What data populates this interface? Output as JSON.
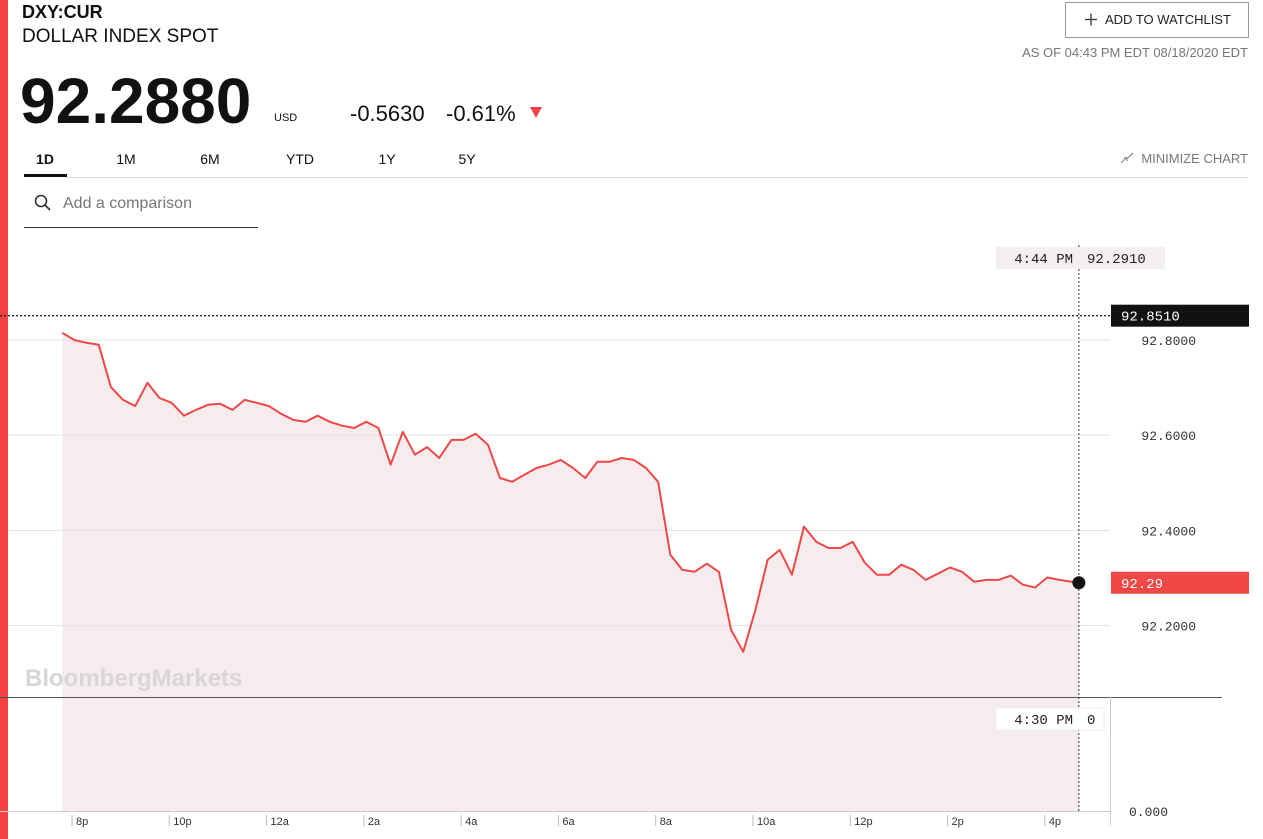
{
  "header": {
    "ticker": "DXY:CUR",
    "name": "DOLLAR INDEX SPOT",
    "price": "92.2880",
    "currency": "USD",
    "change": "-0.5630",
    "change_pct": "-0.61%",
    "watchlist_button": "ADD TO WATCHLIST",
    "as_of": "AS OF 04:43 PM EDT 08/18/2020 EDT",
    "tabs": [
      "1D",
      "1M",
      "6M",
      "YTD",
      "1Y",
      "5Y"
    ],
    "minimize": "MINIMIZE CHART",
    "search_placeholder": "Add a comparison"
  },
  "chart_data": {
    "type": "line",
    "watermark": "BloombergMarkets",
    "series": [
      {
        "name": "DXY:CUR",
        "color": "#f04747",
        "x": [
          19.8,
          20.05,
          20.3,
          20.55,
          20.8,
          21.05,
          21.3,
          21.55,
          21.8,
          22.05,
          22.3,
          22.55,
          22.8,
          23.05,
          23.3,
          23.55,
          23.8,
          24.05,
          24.3,
          24.55,
          24.8,
          25.05,
          25.3,
          25.55,
          25.8,
          26.05,
          26.3,
          26.55,
          26.8,
          27.05,
          27.3,
          27.55,
          27.8,
          28.05,
          28.3,
          28.55,
          28.8,
          29.05,
          29.3,
          29.55,
          29.8,
          30.05,
          30.3,
          30.55,
          30.8,
          31.05,
          31.3,
          31.55,
          31.8,
          32.05,
          32.3,
          32.55,
          32.8,
          33.05,
          33.3,
          33.55,
          33.8,
          34.05,
          34.3,
          34.55,
          34.8,
          35.05,
          35.3,
          35.55,
          35.8,
          36.05,
          36.3,
          36.55,
          36.8,
          37.05,
          37.3,
          37.55,
          37.8,
          38.05,
          38.3,
          38.55,
          38.8,
          39.05,
          39.3,
          39.55,
          39.8,
          40.05,
          40.3,
          40.55,
          40.7
        ],
        "values": [
          92.815,
          92.8,
          92.794,
          92.79,
          92.701,
          92.674,
          92.661,
          92.71,
          92.678,
          92.668,
          92.641,
          92.653,
          92.664,
          92.666,
          92.653,
          92.674,
          92.668,
          92.661,
          92.645,
          92.632,
          92.628,
          92.641,
          92.628,
          92.62,
          92.615,
          92.628,
          92.615,
          92.538,
          92.607,
          92.559,
          92.575,
          92.552,
          92.59,
          92.59,
          92.603,
          92.58,
          92.51,
          92.502,
          92.517,
          92.531,
          92.538,
          92.548,
          92.531,
          92.51,
          92.544,
          92.544,
          92.552,
          92.548,
          92.531,
          92.502,
          92.349,
          92.317,
          92.313,
          92.33,
          92.313,
          92.191,
          92.145,
          92.233,
          92.338,
          92.359,
          92.307,
          92.408,
          92.376,
          92.363,
          92.363,
          92.376,
          92.332,
          92.307,
          92.307,
          92.328,
          92.317,
          92.296,
          92.309,
          92.322,
          92.313,
          92.292,
          92.296,
          92.296,
          92.305,
          92.286,
          92.28,
          92.301,
          92.296,
          92.292,
          92.29
        ]
      }
    ],
    "xlim": [
      18.52,
      41.34
    ],
    "xticks": [
      {
        "value": 20,
        "label": "8p"
      },
      {
        "value": 22,
        "label": "10p"
      },
      {
        "value": 24,
        "label": "12a"
      },
      {
        "value": 26,
        "label": "2a"
      },
      {
        "value": 28,
        "label": "4a"
      },
      {
        "value": 30,
        "label": "6a"
      },
      {
        "value": 32,
        "label": "8a"
      },
      {
        "value": 34,
        "label": "10a"
      },
      {
        "value": 36,
        "label": "12p"
      },
      {
        "value": 38,
        "label": "2p"
      },
      {
        "value": 40,
        "label": "4p"
      }
    ],
    "ylim": [
      92.05,
      93.01
    ],
    "yticks": [
      {
        "value": 92.8,
        "label": "92.8000"
      },
      {
        "value": 92.6,
        "label": "92.6000"
      },
      {
        "value": 92.4,
        "label": "92.4000"
      },
      {
        "value": 92.2,
        "label": "92.2000"
      }
    ],
    "grid": true,
    "reference_line": {
      "value": 92.851,
      "label": "92.8510"
    },
    "crosshair": {
      "time": "4:44 PM",
      "value": "92.2910",
      "volume_time": "4:30 PM",
      "volume_value": "0"
    },
    "volume_axis_label": "0.000"
  }
}
